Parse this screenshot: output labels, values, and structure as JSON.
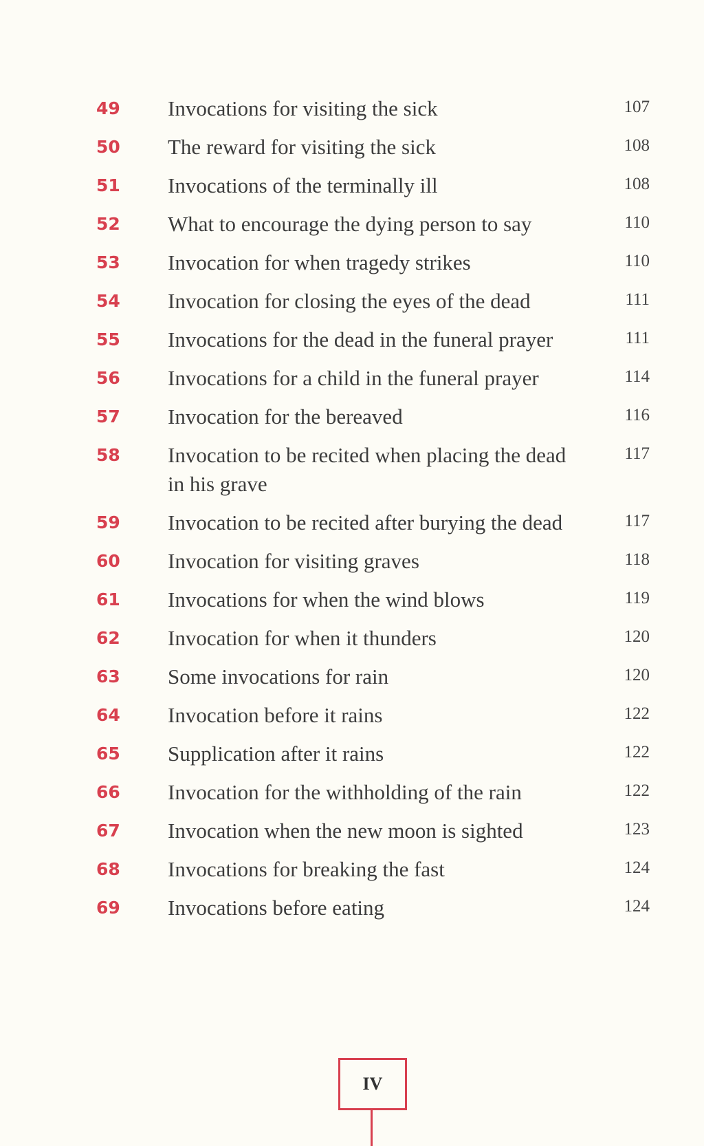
{
  "entries": [
    {
      "num": "49",
      "title": "Invocations for visiting the sick",
      "page": "107"
    },
    {
      "num": "50",
      "title": "The reward for visiting the sick",
      "page": "108"
    },
    {
      "num": "51",
      "title": "Invocations of the terminally ill",
      "page": "108"
    },
    {
      "num": "52",
      "title": "What to encourage the dying person to say",
      "page": "110"
    },
    {
      "num": "53",
      "title": "Invocation for when tragedy strikes",
      "page": "110"
    },
    {
      "num": "54",
      "title": "Invocation for closing the eyes of the dead",
      "page": "111"
    },
    {
      "num": "55",
      "title": "Invocations for the dead in the funeral prayer",
      "page": "111"
    },
    {
      "num": "56",
      "title": "Invocations for a child in the funeral prayer",
      "page": "114"
    },
    {
      "num": "57",
      "title": "Invocation for the bereaved",
      "page": "116"
    },
    {
      "num": "58",
      "title": "Invocation to be recited when placing the dead in his grave",
      "page": "117"
    },
    {
      "num": "59",
      "title": "Invocation to be recited after burying the dead",
      "page": "117"
    },
    {
      "num": "60",
      "title": "Invocation for visiting graves",
      "page": "118"
    },
    {
      "num": "61",
      "title": "Invocations for when the wind blows",
      "page": "119"
    },
    {
      "num": "62",
      "title": "Invocation for when it thunders",
      "page": "120"
    },
    {
      "num": "63",
      "title": "Some invocations for rain",
      "page": "120"
    },
    {
      "num": "64",
      "title": "Invocation before it rains",
      "page": "122"
    },
    {
      "num": "65",
      "title": "Supplication after it rains",
      "page": "122"
    },
    {
      "num": "66",
      "title": "Invocation for the withholding of the rain",
      "page": "122"
    },
    {
      "num": "67",
      "title": "Invocation when the new moon is sighted",
      "page": "123"
    },
    {
      "num": "68",
      "title": "Invocations for breaking the fast",
      "page": "124"
    },
    {
      "num": "69",
      "title": "Invocations before eating",
      "page": "124"
    }
  ],
  "folio": "IV",
  "colors": {
    "accent": "#d8404f",
    "text": "#3c3c3c",
    "background": "#fdfcf6"
  }
}
